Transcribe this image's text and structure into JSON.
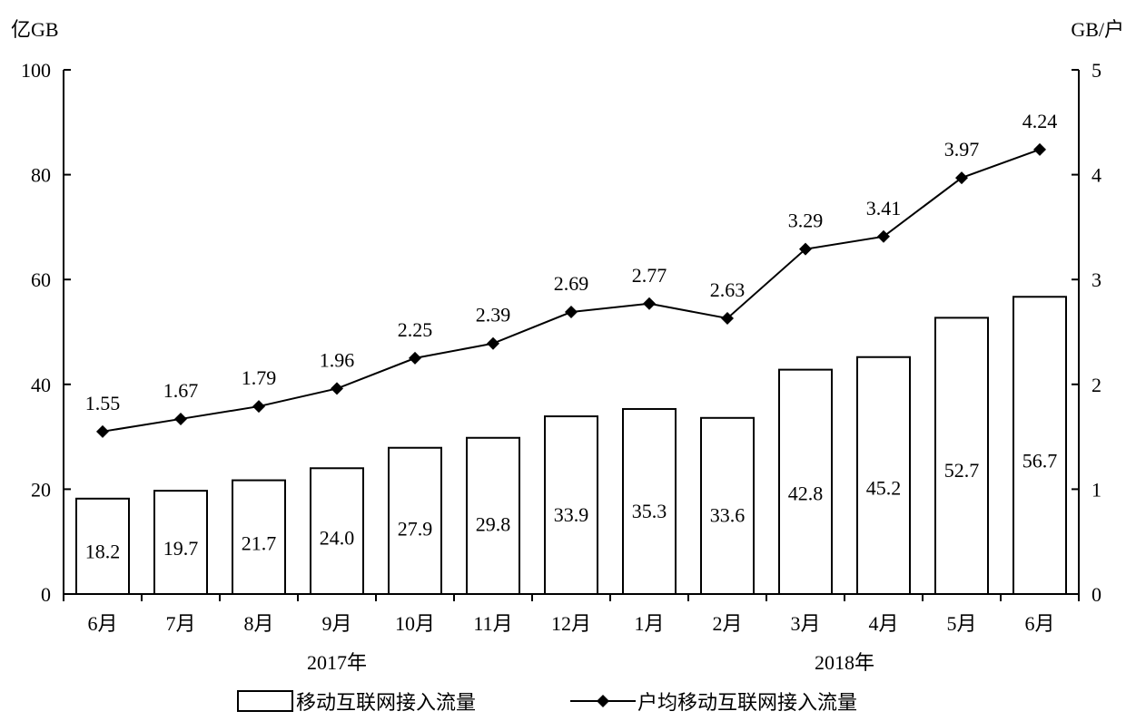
{
  "chart_data": {
    "type": "bar",
    "left_axis_unit": "亿GB",
    "right_axis_unit": "GB/户",
    "categories": [
      "6月",
      "7月",
      "8月",
      "9月",
      "10月",
      "11月",
      "12月",
      "1月",
      "2月",
      "3月",
      "4月",
      "5月",
      "6月"
    ],
    "year_groups": [
      {
        "label": "2017年",
        "categories": [
          "6月",
          "7月",
          "8月",
          "9月",
          "10月",
          "11月",
          "12月"
        ]
      },
      {
        "label": "2018年",
        "categories": [
          "1月",
          "2月",
          "3月",
          "4月",
          "5月",
          "6月"
        ]
      }
    ],
    "series": [
      {
        "name": "移动互联网接入流量",
        "type": "bar",
        "axis": "left",
        "values": [
          18.2,
          19.7,
          21.7,
          24.0,
          27.9,
          29.8,
          33.9,
          35.3,
          33.6,
          42.8,
          45.2,
          52.7,
          56.7
        ],
        "labels": [
          "18.2",
          "19.7",
          "21.7",
          "24.0",
          "27.9",
          "29.8",
          "33.9",
          "35.3",
          "33.6",
          "42.8",
          "45.2",
          "52.7",
          "56.7"
        ]
      },
      {
        "name": "户均移动互联网接入流量",
        "type": "line",
        "axis": "right",
        "marker": "diamond",
        "values": [
          1.55,
          1.67,
          1.79,
          1.96,
          2.25,
          2.39,
          2.69,
          2.77,
          2.63,
          3.29,
          3.41,
          3.97,
          4.24
        ],
        "labels": [
          "1.55",
          "1.67",
          "1.79",
          "1.96",
          "2.25",
          "2.39",
          "2.69",
          "2.77",
          "2.63",
          "3.29",
          "3.41",
          "3.97",
          "4.24"
        ]
      }
    ],
    "left_axis": {
      "min": 0,
      "max": 100,
      "ticks": [
        "0",
        "20",
        "40",
        "60",
        "80",
        "100"
      ]
    },
    "right_axis": {
      "min": 0,
      "max": 5,
      "ticks": [
        "0",
        "1",
        "2",
        "3",
        "4",
        "5"
      ]
    },
    "legend_position": "bottom",
    "grid": false,
    "colors": {
      "bar_fill": "#ffffff",
      "bar_stroke": "#000000",
      "line": "#000000",
      "marker": "#000000",
      "axis": "#000000"
    }
  }
}
